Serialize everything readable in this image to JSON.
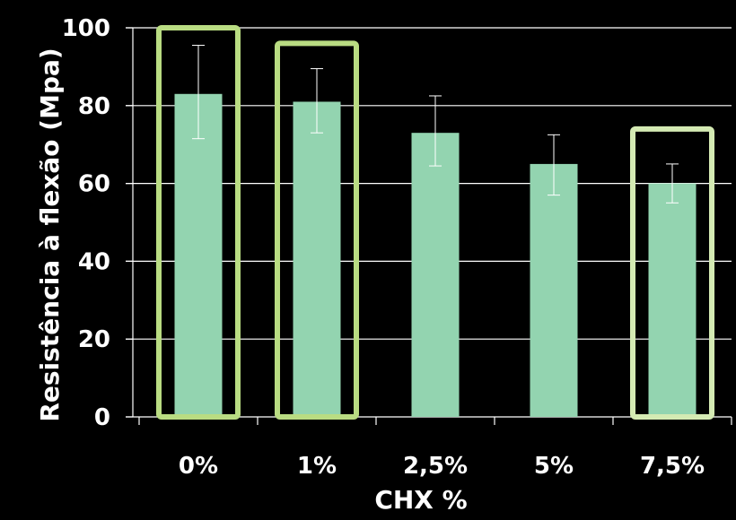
{
  "chart_data": {
    "type": "bar",
    "title": "",
    "xlabel": "CHX %",
    "ylabel": "Resistência à flexão (Mpa)",
    "categories": [
      "0%",
      "1%",
      "2,5%",
      "5%",
      "7,5%"
    ],
    "values": [
      83,
      81,
      73,
      65,
      60
    ],
    "error_bars": [
      {
        "lower": 71.5,
        "upper": 95.5
      },
      {
        "lower": 73,
        "upper": 89.5
      },
      {
        "lower": 64.5,
        "upper": 82.5
      },
      {
        "lower": 57,
        "upper": 72.5
      },
      {
        "lower": 55,
        "upper": 65
      }
    ],
    "highlighted_categories": [
      "0%",
      "1%",
      "7,5%"
    ],
    "ylim": [
      0,
      100
    ],
    "yticks": [
      0,
      20,
      40,
      60,
      80,
      100
    ],
    "grid": true,
    "legend": "none",
    "colors": {
      "background": "#000000",
      "bar": "#93d4b0",
      "highlight": "#b9dc82",
      "highlight_last": "#d4eab3",
      "gridline": "#ffffff",
      "text": "#ffffff"
    }
  }
}
